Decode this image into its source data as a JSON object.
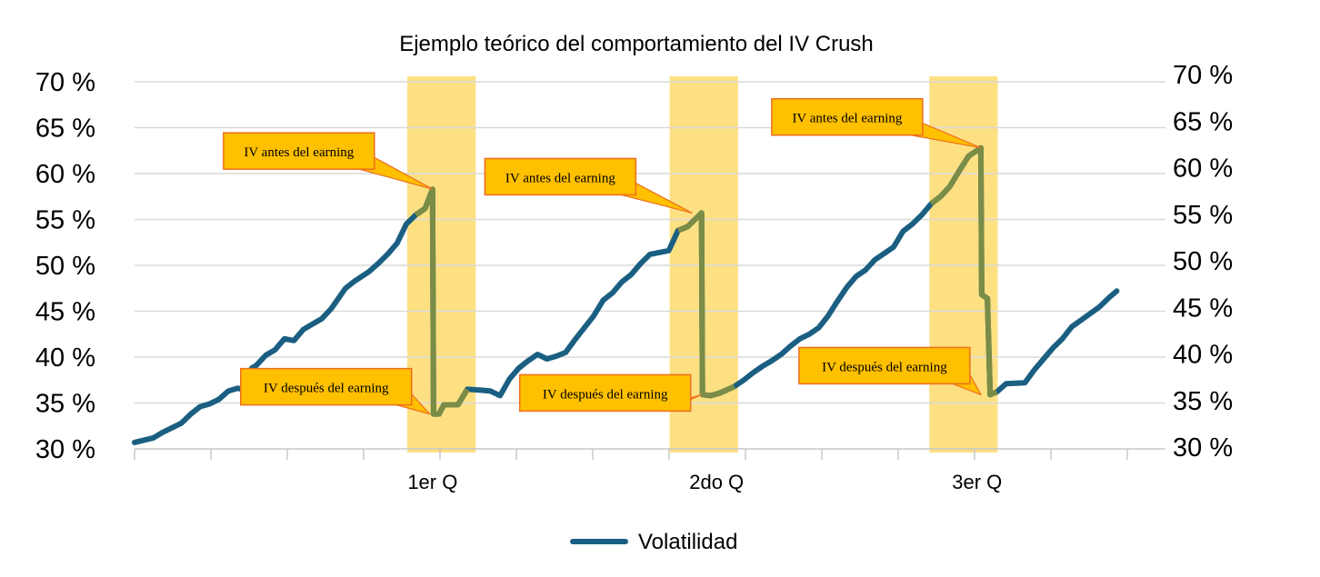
{
  "chart_data": {
    "type": "line",
    "title": "Ejemplo teórico del comportamiento del IV Crush",
    "xlabel": "",
    "ylabel": "",
    "ylim": [
      30,
      70
    ],
    "y_ticks": [
      "30 %",
      "35 %",
      "40 %",
      "45 %",
      "50 %",
      "55 %",
      "60 %",
      "65 %",
      "70 %"
    ],
    "y_tick_values": [
      30,
      35,
      40,
      45,
      50,
      55,
      60,
      65,
      70
    ],
    "right_axis_mirrored": true,
    "grid": true,
    "xlim": [
      0,
      100
    ],
    "x_category_labels": [
      {
        "label": "1er Q",
        "x": 31.8
      },
      {
        "label": "2do Q",
        "x": 62.1
      },
      {
        "label": "3er Q",
        "x": 89.9
      }
    ],
    "legend": {
      "position": "bottom",
      "entries": [
        "Volatilidad"
      ]
    },
    "colors": {
      "series": "#1a5f82",
      "crush": "#7a8c46",
      "band": "#fde082",
      "callout_fill": "#ffc000",
      "callout_border": "#ee6f1f",
      "grid": "#d9d9d9"
    },
    "series": [
      {
        "name": "Volatilidad",
        "points": [
          [
            0,
            30.7
          ],
          [
            2,
            31.2
          ],
          [
            3,
            31.8
          ],
          [
            4,
            32.3
          ],
          [
            5,
            32.8
          ],
          [
            6,
            33.8
          ],
          [
            7,
            34.6
          ],
          [
            8,
            34.9
          ],
          [
            9,
            35.4
          ],
          [
            10,
            36.3
          ],
          [
            11,
            36.6
          ],
          [
            12,
            36.4
          ],
          [
            12.5,
            38.8
          ],
          [
            13,
            39.1
          ],
          [
            14,
            40.2
          ],
          [
            15,
            40.8
          ],
          [
            16,
            42.0
          ],
          [
            17,
            41.8
          ],
          [
            18,
            43.0
          ],
          [
            19,
            43.6
          ],
          [
            20,
            44.2
          ],
          [
            21,
            45.3
          ],
          [
            22.5,
            47.5
          ],
          [
            23.5,
            48.3
          ],
          [
            25,
            49.3
          ],
          [
            26,
            50.2
          ],
          [
            27,
            51.2
          ],
          [
            28,
            52.4
          ],
          [
            29,
            54.5
          ],
          [
            30,
            55.5
          ],
          [
            31,
            56.2
          ],
          [
            31.8,
            58.3
          ],
          [
            31.9,
            33.8
          ],
          [
            32.5,
            33.8
          ],
          [
            33,
            34.8
          ],
          [
            34.5,
            34.8
          ],
          [
            35.5,
            36.5
          ],
          [
            37,
            36.4
          ],
          [
            38,
            36.3
          ],
          [
            39,
            35.8
          ],
          [
            40,
            37.6
          ],
          [
            41,
            38.8
          ],
          [
            42,
            39.6
          ],
          [
            43,
            40.3
          ],
          [
            44,
            39.8
          ],
          [
            45,
            40.1
          ],
          [
            46,
            40.5
          ],
          [
            47,
            41.9
          ],
          [
            48,
            43.2
          ],
          [
            49,
            44.5
          ],
          [
            50,
            46.2
          ],
          [
            51,
            47.0
          ],
          [
            52,
            48.2
          ],
          [
            53,
            49.0
          ],
          [
            54,
            50.2
          ],
          [
            55,
            51.2
          ],
          [
            57,
            51.6
          ],
          [
            58,
            53.8
          ],
          [
            59,
            54.2
          ],
          [
            60,
            55.2
          ],
          [
            60.5,
            55.7
          ],
          [
            60.6,
            35.9
          ],
          [
            61.5,
            35.8
          ],
          [
            62.5,
            36.1
          ],
          [
            64,
            36.8
          ],
          [
            65,
            37.5
          ],
          [
            66,
            38.3
          ],
          [
            67,
            39.0
          ],
          [
            68,
            39.6
          ],
          [
            69,
            40.3
          ],
          [
            70,
            41.2
          ],
          [
            71,
            42.0
          ],
          [
            72,
            42.5
          ],
          [
            73,
            43.2
          ],
          [
            74,
            44.5
          ],
          [
            75,
            46.1
          ],
          [
            76,
            47.6
          ],
          [
            77,
            48.8
          ],
          [
            78,
            49.5
          ],
          [
            79,
            50.6
          ],
          [
            80,
            51.3
          ],
          [
            81,
            52.0
          ],
          [
            82,
            53.7
          ],
          [
            83,
            54.5
          ],
          [
            84,
            55.5
          ],
          [
            85,
            56.7
          ],
          [
            86,
            57.5
          ],
          [
            87,
            58.6
          ],
          [
            88,
            60.3
          ],
          [
            89,
            61.9
          ],
          [
            90.3,
            62.8
          ],
          [
            90.4,
            46.8
          ],
          [
            91,
            46.4
          ],
          [
            91.3,
            35.9
          ],
          [
            92,
            36.2
          ],
          [
            93,
            37.1
          ],
          [
            95,
            37.2
          ],
          [
            96,
            38.6
          ],
          [
            97,
            39.8
          ],
          [
            98,
            41.0
          ],
          [
            99,
            42.0
          ],
          [
            100,
            43.3
          ],
          [
            101.5,
            44.4
          ],
          [
            103,
            45.5
          ],
          [
            104,
            46.5
          ],
          [
            104.8,
            47.2
          ]
        ]
      }
    ],
    "shaded_regions": [
      {
        "from": 29.1,
        "to": 36.4,
        "label": "1er Q"
      },
      {
        "from": 57.1,
        "to": 64.4,
        "label": "2do Q"
      },
      {
        "from": 84.8,
        "to": 92.1,
        "label": "3er Q"
      }
    ],
    "annotations": [
      {
        "text": "IV antes del earning",
        "target": [
          31.8,
          58.3
        ],
        "box_position": "upper-left"
      },
      {
        "text": "IV después del earning",
        "target": [
          31.5,
          33.8
        ],
        "box_position": "lower-left"
      },
      {
        "text": "IV antes del earning",
        "target": [
          59.5,
          55.7
        ],
        "box_position": "upper-left"
      },
      {
        "text": "IV después del earning",
        "target": [
          60.5,
          35.9
        ],
        "box_position": "lower-left"
      },
      {
        "text": "IV antes del earning",
        "target": [
          90.3,
          62.8
        ],
        "box_position": "upper-left"
      },
      {
        "text": "IV después del earning",
        "target": [
          90.3,
          35.9
        ],
        "box_position": "lower-left"
      }
    ]
  }
}
